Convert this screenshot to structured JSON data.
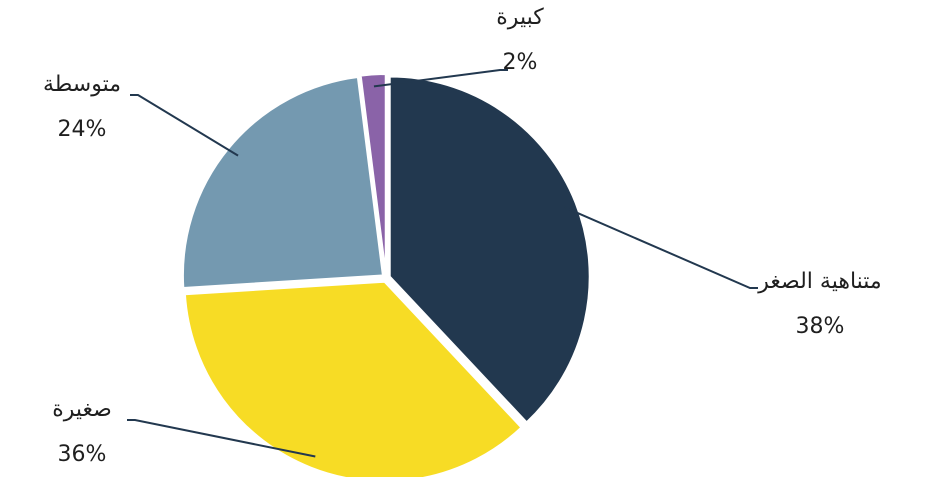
{
  "chart_data": {
    "type": "pie",
    "categories": [
      "متناهية الصغر",
      "صغيرة",
      "متوسطة",
      "كبيرة"
    ],
    "values": [
      38,
      36,
      24,
      2
    ],
    "value_labels": [
      "38%",
      "36%",
      "24%",
      "2%"
    ],
    "colors": [
      "#22384f",
      "#f7dc25",
      "#7499b0",
      "#8a63a8"
    ]
  }
}
